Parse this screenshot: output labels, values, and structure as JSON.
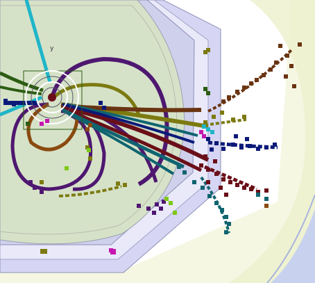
{
  "axis_label": "y",
  "colors": {
    "page_bg": "#ffffff",
    "outer_field": "#f6f7e3",
    "outer_field_edge": "#eef0cc",
    "frame_outer": "#b9bbd8",
    "frame_fill": "#d6d6f4",
    "frame_inner_fill": "#e9e9fa",
    "inner_disc": "#d6e2c8",
    "inner_disc_edge": "#9aa0b0",
    "corner_blue": "#c8d2ee",
    "cyan": "#1fb5c8",
    "purple": "#4e1770",
    "olive": "#7c7a10",
    "maroon": "#6a0f18",
    "teal": "#0f6470",
    "navy": "#0b1a78",
    "brown": "#6a3412",
    "dark_green": "#2c5c12",
    "magenta": "#c418b0",
    "bright_green": "#7fc818",
    "white_ring": "#ffffff",
    "orange_brown": "#8a4a10"
  },
  "icons": [
    "interaction-vertex-icon",
    "axis-marker-icon"
  ]
}
